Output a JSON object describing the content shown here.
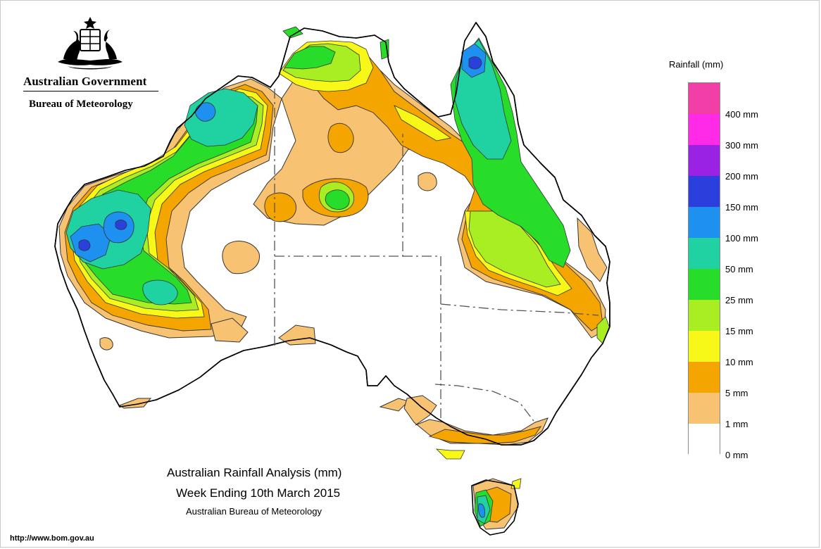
{
  "header": {
    "government": "Australian Government",
    "bureau": "Bureau of Meteorology"
  },
  "legend": {
    "title": "Rainfall (mm)",
    "items": [
      {
        "label": "400 mm",
        "color": "#f23fa8"
      },
      {
        "label": "300 mm",
        "color": "#ff2ae6"
      },
      {
        "label": "200 mm",
        "color": "#9a22e3"
      },
      {
        "label": "150 mm",
        "color": "#2b3fdc"
      },
      {
        "label": "100 mm",
        "color": "#1e90f0"
      },
      {
        "label": "50 mm",
        "color": "#20d2a2"
      },
      {
        "label": "25 mm",
        "color": "#28dc2a"
      },
      {
        "label": "15 mm",
        "color": "#a8ee22"
      },
      {
        "label": "10 mm",
        "color": "#f8f818"
      },
      {
        "label": "5 mm",
        "color": "#f5a500"
      },
      {
        "label": "1 mm",
        "color": "#f8c273"
      },
      {
        "label": "0 mm",
        "color": "#ffffff"
      }
    ]
  },
  "title": {
    "line1": "Australian Rainfall Analysis (mm)",
    "line2": "Week Ending 10th March 2015",
    "line3": "Australian Bureau of Meteorology"
  },
  "footer": {
    "url": "http://www.bom.gov.au"
  }
}
